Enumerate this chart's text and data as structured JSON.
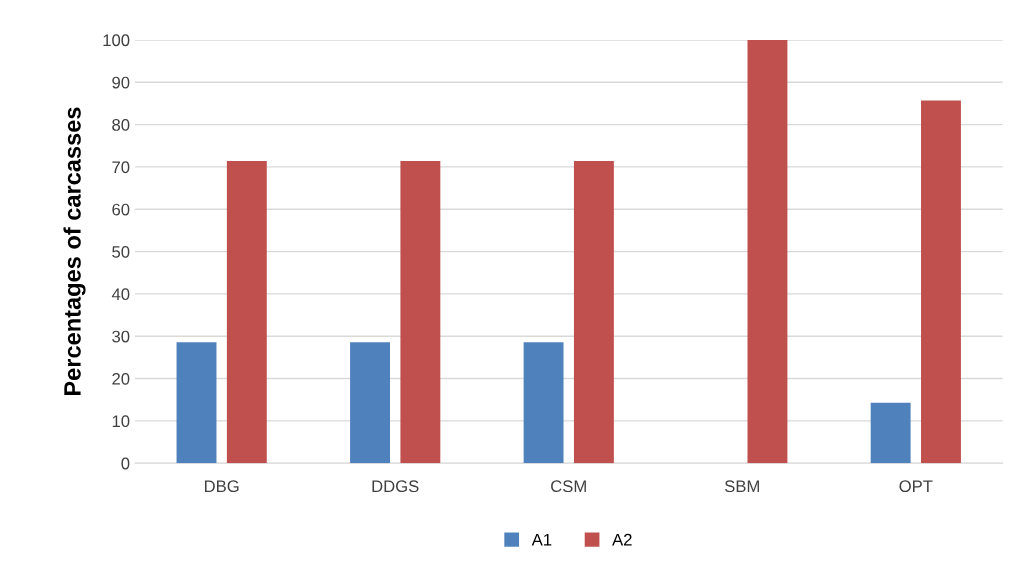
{
  "chart_data": {
    "type": "bar",
    "ylabel": "Percentages of carcasses",
    "categories": [
      "DBG",
      "DDGS",
      "CSM",
      "SBM",
      "OPT"
    ],
    "series": [
      {
        "name": "A1",
        "color": "#4f81bd",
        "values": [
          28.6,
          28.6,
          28.6,
          0,
          14.3
        ]
      },
      {
        "name": "A2",
        "color": "#c0504d",
        "values": [
          71.4,
          71.4,
          71.4,
          100,
          85.7
        ]
      }
    ],
    "ylim": [
      0,
      100
    ],
    "yticks": [
      0,
      10,
      20,
      30,
      40,
      50,
      60,
      70,
      80,
      90,
      100
    ],
    "grid": "y",
    "legend": "bottom"
  }
}
